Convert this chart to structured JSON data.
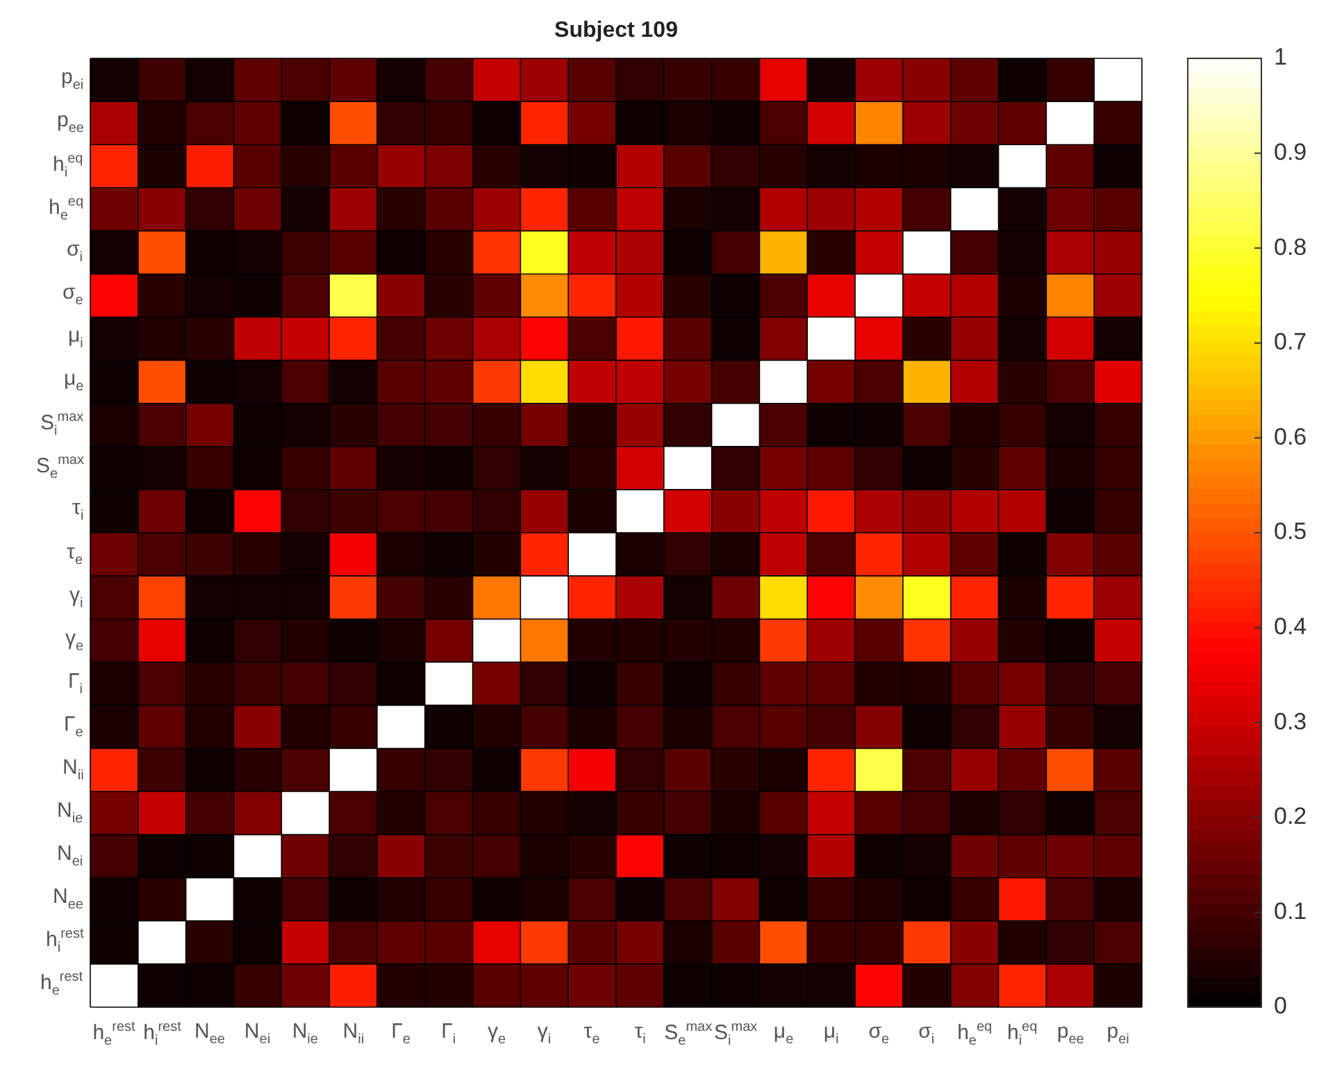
{
  "chart_data": {
    "type": "heatmap",
    "title": "Subject 109",
    "categories": [
      "h$_{e}$$^{rest}$",
      "h$_{i}$$^{rest}$",
      "N$_{ee}$",
      "N$_{ei}$",
      "N$_{ie}$",
      "N$_{ii}$",
      "Γ$_{e}$",
      "Γ$_{i}$",
      "γ$_{e}$",
      "γ$_{i}$",
      "τ$_{e}$",
      "τ$_{i}$",
      "S$_{e}$$^{max}$",
      "S$_{i}$$^{max}$",
      "μ$_{e}$",
      "μ$_{i}$",
      "σ$_{e}$",
      "σ$_{i}$",
      "h$_{e}$$^{eq}$",
      "h$_{i}$$^{eq}$",
      "p$_{ee}$",
      "p$_{ei}$"
    ],
    "y_categories": [
      "p$_{ei}$",
      "p$_{ee}$",
      "h$_{i}$$^{eq}$",
      "h$_{e}$$^{eq}$",
      "σ$_{i}$",
      "σ$_{e}$",
      "μ$_{i}$",
      "μ$_{e}$",
      "S$_{i}$$^{max}$",
      "S$_{e}$$^{max}$",
      "τ$_{i}$",
      "τ$_{e}$",
      "γ$_{i}$",
      "γ$_{e}$",
      "Γ$_{i}$",
      "Γ$_{e}$",
      "N$_{ii}$",
      "N$_{ie}$",
      "N$_{ei}$",
      "N$_{ee}$",
      "h$_{i}$$^{rest}$",
      "h$_{e}$$^{rest}$"
    ],
    "cells": [
      [
        0.03,
        0.09,
        0.03,
        0.14,
        0.11,
        0.14,
        0.03,
        0.1,
        0.29,
        0.23,
        0.13,
        0.07,
        0.08,
        0.08,
        0.34,
        0.03,
        0.23,
        0.2,
        0.14,
        0.02,
        0.08,
        1
      ],
      [
        0.25,
        0.05,
        0.11,
        0.14,
        0.02,
        0.49,
        0.07,
        0.08,
        0.02,
        0.43,
        0.17,
        0.02,
        0.04,
        0.02,
        0.11,
        0.31,
        0.57,
        0.23,
        0.16,
        0.14,
        1,
        0.08
      ],
      [
        0.43,
        0.04,
        0.42,
        0.13,
        0.06,
        0.13,
        0.22,
        0.18,
        0.06,
        0.03,
        0.02,
        0.26,
        0.13,
        0.07,
        0.06,
        0.03,
        0.04,
        0.04,
        0.03,
        1,
        0.14,
        0.02
      ],
      [
        0.16,
        0.2,
        0.07,
        0.16,
        0.03,
        0.23,
        0.06,
        0.13,
        0.23,
        0.43,
        0.13,
        0.28,
        0.04,
        0.03,
        0.26,
        0.23,
        0.26,
        0.1,
        1,
        0.03,
        0.16,
        0.13
      ],
      [
        0.03,
        0.49,
        0.02,
        0.03,
        0.09,
        0.13,
        0.02,
        0.06,
        0.45,
        0.78,
        0.28,
        0.25,
        0.02,
        0.1,
        0.64,
        0.06,
        0.29,
        1,
        0.1,
        0.03,
        0.25,
        0.22
      ],
      [
        0.38,
        0.06,
        0.03,
        0.02,
        0.11,
        0.82,
        0.2,
        0.06,
        0.14,
        0.58,
        0.43,
        0.26,
        0.06,
        0.02,
        0.11,
        0.34,
        1,
        0.29,
        0.26,
        0.04,
        0.57,
        0.23
      ],
      [
        0.03,
        0.05,
        0.06,
        0.28,
        0.29,
        0.43,
        0.1,
        0.16,
        0.25,
        0.38,
        0.11,
        0.41,
        0.13,
        0.02,
        0.19,
        1,
        0.34,
        0.06,
        0.22,
        0.03,
        0.31,
        0.03
      ],
      [
        0.02,
        0.49,
        0.02,
        0.03,
        0.11,
        0.03,
        0.13,
        0.14,
        0.46,
        0.7,
        0.28,
        0.28,
        0.17,
        0.1,
        1,
        0.17,
        0.11,
        0.64,
        0.26,
        0.06,
        0.11,
        0.33
      ],
      [
        0.04,
        0.11,
        0.17,
        0.02,
        0.03,
        0.06,
        0.1,
        0.1,
        0.08,
        0.17,
        0.05,
        0.22,
        0.07,
        1,
        0.11,
        0.02,
        0.02,
        0.11,
        0.05,
        0.08,
        0.03,
        0.08
      ],
      [
        0.02,
        0.03,
        0.08,
        0.02,
        0.08,
        0.14,
        0.03,
        0.02,
        0.07,
        0.03,
        0.06,
        0.31,
        1,
        0.07,
        0.17,
        0.14,
        0.07,
        0.02,
        0.06,
        0.14,
        0.04,
        0.08
      ],
      [
        0.02,
        0.16,
        0.02,
        0.38,
        0.07,
        0.09,
        0.11,
        0.1,
        0.07,
        0.22,
        0.04,
        1,
        0.31,
        0.2,
        0.28,
        0.41,
        0.25,
        0.22,
        0.26,
        0.26,
        0.02,
        0.08
      ],
      [
        0.16,
        0.11,
        0.09,
        0.06,
        0.03,
        0.36,
        0.04,
        0.02,
        0.05,
        0.43,
        1,
        0.04,
        0.07,
        0.04,
        0.28,
        0.11,
        0.43,
        0.26,
        0.14,
        0.02,
        0.19,
        0.13
      ],
      [
        0.11,
        0.47,
        0.03,
        0.03,
        0.03,
        0.46,
        0.1,
        0.06,
        0.55,
        1,
        0.43,
        0.25,
        0.03,
        0.16,
        0.7,
        0.38,
        0.58,
        0.78,
        0.43,
        0.04,
        0.43,
        0.23
      ],
      [
        0.1,
        0.34,
        0.02,
        0.07,
        0.05,
        0.02,
        0.04,
        0.17,
        1,
        0.55,
        0.05,
        0.05,
        0.05,
        0.05,
        0.46,
        0.23,
        0.13,
        0.45,
        0.22,
        0.05,
        0.02,
        0.29
      ],
      [
        0.04,
        0.11,
        0.06,
        0.09,
        0.1,
        0.07,
        0.02,
        1,
        0.17,
        0.07,
        0.02,
        0.08,
        0.02,
        0.08,
        0.14,
        0.14,
        0.05,
        0.05,
        0.13,
        0.17,
        0.07,
        0.1
      ],
      [
        0.04,
        0.14,
        0.05,
        0.2,
        0.05,
        0.08,
        1,
        0.02,
        0.05,
        0.1,
        0.04,
        0.1,
        0.04,
        0.11,
        0.13,
        0.1,
        0.19,
        0.02,
        0.07,
        0.22,
        0.08,
        0.03
      ],
      [
        0.43,
        0.09,
        0.02,
        0.06,
        0.11,
        1,
        0.08,
        0.07,
        0.02,
        0.46,
        0.36,
        0.07,
        0.13,
        0.06,
        0.04,
        0.43,
        0.82,
        0.11,
        0.22,
        0.14,
        0.49,
        0.13
      ],
      [
        0.17,
        0.29,
        0.1,
        0.19,
        1,
        0.11,
        0.05,
        0.11,
        0.08,
        0.05,
        0.03,
        0.08,
        0.1,
        0.04,
        0.13,
        0.29,
        0.13,
        0.1,
        0.04,
        0.07,
        0.02,
        0.11
      ],
      [
        0.1,
        0.02,
        0.02,
        1,
        0.16,
        0.07,
        0.2,
        0.09,
        0.1,
        0.04,
        0.06,
        0.38,
        0.02,
        0.02,
        0.03,
        0.26,
        0.02,
        0.03,
        0.16,
        0.14,
        0.16,
        0.14
      ],
      [
        0.02,
        0.06,
        1,
        0.02,
        0.1,
        0.02,
        0.05,
        0.08,
        0.02,
        0.04,
        0.11,
        0.02,
        0.11,
        0.19,
        0.02,
        0.08,
        0.05,
        0.02,
        0.08,
        0.41,
        0.11,
        0.04
      ],
      [
        0.02,
        1,
        0.06,
        0.02,
        0.29,
        0.11,
        0.14,
        0.13,
        0.34,
        0.46,
        0.13,
        0.17,
        0.04,
        0.13,
        0.49,
        0.08,
        0.08,
        0.46,
        0.2,
        0.05,
        0.07,
        0.11
      ],
      [
        1,
        0.02,
        0.02,
        0.08,
        0.16,
        0.42,
        0.05,
        0.05,
        0.13,
        0.14,
        0.16,
        0.14,
        0.02,
        0.02,
        0.03,
        0.03,
        0.38,
        0.05,
        0.19,
        0.43,
        0.25,
        0.04
      ]
    ],
    "clim": [
      0,
      1
    ],
    "cticks": [
      0,
      0.1,
      0.2,
      0.3,
      0.4,
      0.5,
      0.6,
      0.7,
      0.8,
      0.9,
      1
    ]
  }
}
